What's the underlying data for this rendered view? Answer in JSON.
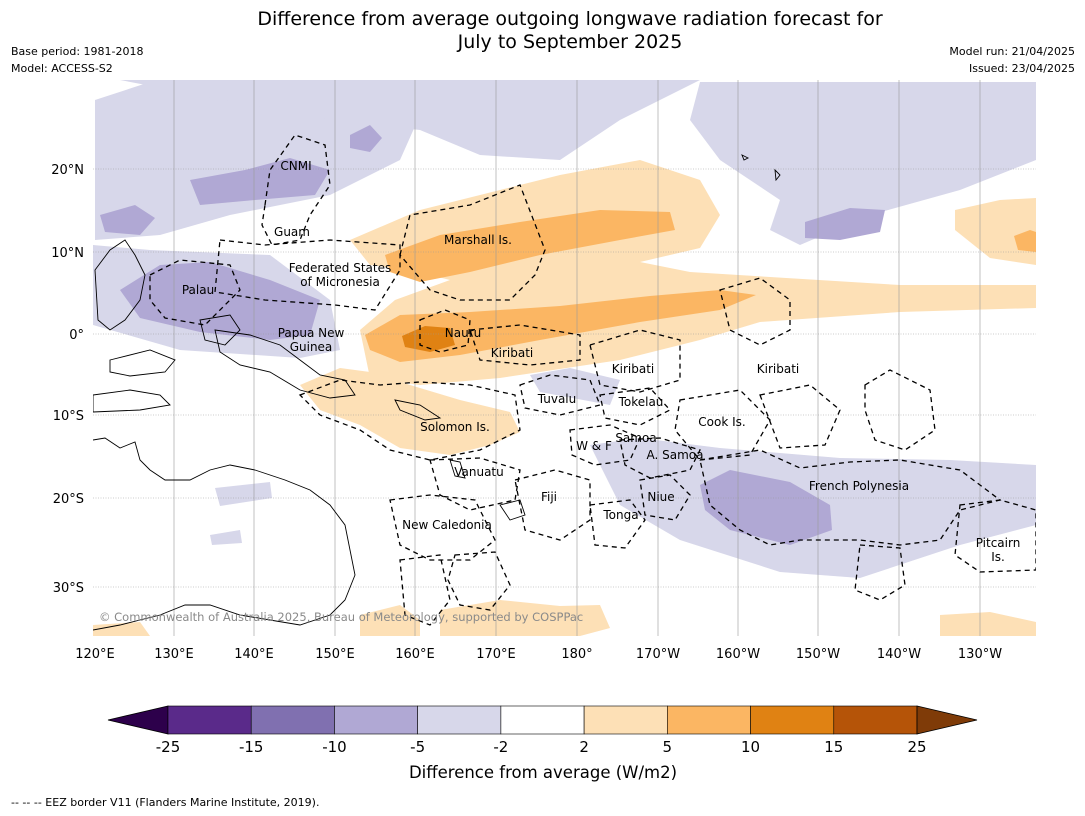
{
  "title_line1": "Difference from average outgoing longwave radiation forecast for",
  "title_line2": "July to September 2025",
  "meta_left": [
    "Base period: 1981-2018",
    "Model: ACCESS-S2"
  ],
  "meta_right": [
    "Model run: 21/04/2025",
    "Issued: 23/04/2025"
  ],
  "map": {
    "lon_labels": [
      "120°E",
      "130°E",
      "140°E",
      "150°E",
      "160°E",
      "170°E",
      "180°",
      "170°W",
      "160°W",
      "150°W",
      "140°W",
      "130°W"
    ],
    "lat_labels": [
      "20°N",
      "10°N",
      "0°",
      "10°S",
      "20°S",
      "30°S"
    ],
    "places": [
      {
        "id": "cnmi",
        "lines": [
          "CNMI"
        ]
      },
      {
        "id": "guam",
        "lines": [
          "Guam"
        ]
      },
      {
        "id": "marshall",
        "lines": [
          "Marshall Is."
        ]
      },
      {
        "id": "fsm",
        "lines": [
          "Federated States",
          "of Micronesia"
        ]
      },
      {
        "id": "palau",
        "lines": [
          "Palau"
        ]
      },
      {
        "id": "png",
        "lines": [
          "Papua New",
          "Guinea"
        ]
      },
      {
        "id": "nauru",
        "lines": [
          "Nauru"
        ]
      },
      {
        "id": "kiribati1",
        "lines": [
          "Kiribati"
        ]
      },
      {
        "id": "kiribati2",
        "lines": [
          "Kiribati"
        ]
      },
      {
        "id": "kiribati3",
        "lines": [
          "Kiribati"
        ]
      },
      {
        "id": "tuvalu",
        "lines": [
          "Tuvalu"
        ]
      },
      {
        "id": "tokelau",
        "lines": [
          "Tokelau"
        ]
      },
      {
        "id": "cook",
        "lines": [
          "Cook Is."
        ]
      },
      {
        "id": "solomon",
        "lines": [
          "Solomon Is."
        ]
      },
      {
        "id": "wf",
        "lines": [
          "W & F"
        ]
      },
      {
        "id": "samoa",
        "lines": [
          "Samoa"
        ]
      },
      {
        "id": "asamoa",
        "lines": [
          "A. Samoa"
        ]
      },
      {
        "id": "vanuatu",
        "lines": [
          "Vanuatu"
        ]
      },
      {
        "id": "fiji",
        "lines": [
          "Fiji"
        ]
      },
      {
        "id": "niue",
        "lines": [
          "Niue"
        ]
      },
      {
        "id": "tonga",
        "lines": [
          "Tonga"
        ]
      },
      {
        "id": "frenchpoly",
        "lines": [
          "French Polynesia"
        ]
      },
      {
        "id": "newcal",
        "lines": [
          "New Caledonia"
        ]
      },
      {
        "id": "pitcairn",
        "lines": [
          "Pitcairn",
          "Is."
        ]
      }
    ],
    "copyright": "© Commonwealth of Australia 2025, Bureau of Meteorology, supported by COSPPac"
  },
  "colorbar": {
    "ticks": [
      "-25",
      "-15",
      "-10",
      "-5",
      "-2",
      "2",
      "5",
      "10",
      "15",
      "25"
    ],
    "colors": [
      "#5a2a8a",
      "#8070b0",
      "#b0a8d4",
      "#d7d7ea",
      "#ffffff",
      "#fde0b6",
      "#fbb663",
      "#e08213",
      "#b55408"
    ],
    "extend_low": "#2d004b",
    "extend_high": "#7f3b08",
    "label": "Difference from average (W/m2)"
  },
  "footer": "-- -- -- EEZ border V11 (Flanders Marine Institute, 2019)."
}
